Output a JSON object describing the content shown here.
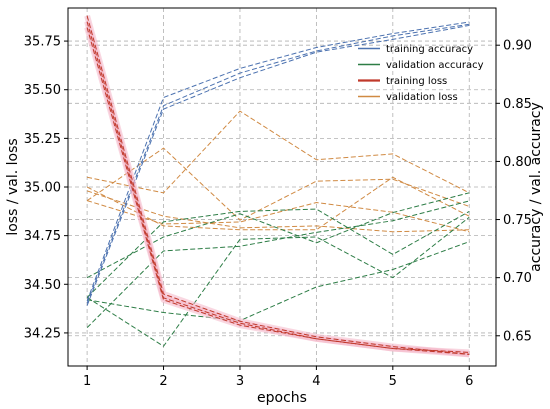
{
  "chart_data": {
    "type": "line",
    "x": [
      1,
      2,
      3,
      4,
      5,
      6
    ],
    "xlabel": "epochs",
    "ylabel_left": "loss / val. loss",
    "ylabel_right": "accuracy / val. accuracy",
    "xlim": [
      0.75,
      6.35
    ],
    "ylim_left": [
      34.08,
      35.92
    ],
    "ylim_right": [
      0.624,
      0.932
    ],
    "xticks": [
      "1",
      "2",
      "3",
      "4",
      "5",
      "6"
    ],
    "yticks_left": [
      "34.25",
      "34.50",
      "34.75",
      "35.00",
      "35.25",
      "35.50",
      "35.75"
    ],
    "yticks_right": [
      "0.65",
      "0.70",
      "0.75",
      "0.80",
      "0.85",
      "0.90"
    ],
    "grid": true,
    "legend_position": "top-right",
    "legend": [
      "training accuracy",
      "validation accuracy",
      "training loss",
      "validation loss"
    ],
    "series": [
      {
        "name": "training accuracy",
        "axis": "right",
        "color": "#4c72b0",
        "runs": [
          [
            0.68,
            0.855,
            0.88,
            0.898,
            0.91,
            0.92
          ],
          [
            0.678,
            0.848,
            0.876,
            0.895,
            0.908,
            0.918
          ],
          [
            0.676,
            0.845,
            0.872,
            0.894,
            0.905,
            0.917
          ]
        ]
      },
      {
        "name": "validation accuracy",
        "axis": "right",
        "color": "#2d7d46",
        "runs": [
          [
            0.7,
            0.735,
            0.755,
            0.73,
            0.756,
            0.773
          ],
          [
            0.683,
            0.748,
            0.757,
            0.759,
            0.72,
            0.757
          ],
          [
            0.683,
            0.641,
            0.733,
            0.735,
            0.7,
            0.752
          ],
          [
            0.681,
            0.67,
            0.663,
            0.692,
            0.707,
            0.731
          ],
          [
            0.657,
            0.723,
            0.727,
            0.739,
            0.749,
            0.766
          ]
        ]
      },
      {
        "name": "training loss",
        "axis": "left",
        "color": "#c0392b",
        "runs": [
          [
            35.88,
            34.45,
            34.31,
            34.23,
            34.18,
            34.14
          ],
          [
            35.85,
            34.43,
            34.3,
            34.22,
            34.17,
            34.15
          ],
          [
            35.82,
            34.42,
            34.29,
            34.22,
            34.17,
            34.14
          ]
        ]
      },
      {
        "name": "validation loss",
        "axis": "left",
        "color": "#d08a43",
        "runs": [
          [
            34.93,
            35.2,
            34.83,
            35.03,
            35.04,
            34.9
          ],
          [
            35.05,
            34.97,
            35.39,
            35.14,
            35.17,
            34.97
          ],
          [
            34.93,
            34.81,
            34.82,
            34.92,
            34.87,
            34.77
          ],
          [
            34.98,
            34.85,
            34.79,
            34.8,
            34.77,
            34.78
          ],
          [
            35.0,
            34.8,
            34.78,
            34.78,
            35.05,
            34.85
          ]
        ]
      }
    ]
  }
}
